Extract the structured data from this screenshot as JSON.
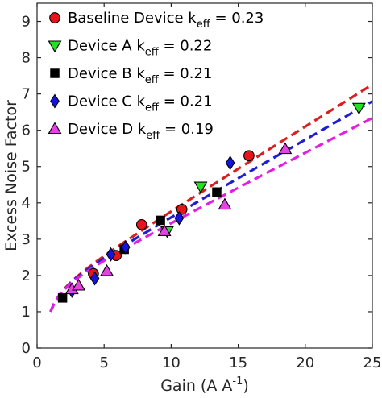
{
  "chart_data": {
    "type": "scatter",
    "xlabel": "Gain (A A",
    "xlabel_sup": "-1",
    "xlabel_close": ")",
    "ylabel": "Excess Noise Factor",
    "xlim": [
      0,
      25
    ],
    "ylim": [
      0,
      9.5
    ],
    "xticks": [
      0,
      5,
      10,
      15,
      20,
      25
    ],
    "yticks": [
      0,
      1,
      2,
      3,
      4,
      5,
      6,
      7,
      8,
      9
    ],
    "grid": false,
    "legend_position": "top-left",
    "series": [
      {
        "name": "Baseline Device k",
        "name_sub": "eff",
        "name_suffix": " = 0.23",
        "marker": "circle",
        "color": "#e8141b",
        "keff": 0.23,
        "fit_color": "#d91f1f",
        "points": [
          [
            4.2,
            2.05
          ],
          [
            5.9,
            2.55
          ],
          [
            7.8,
            3.4
          ],
          [
            10.8,
            3.82
          ],
          [
            15.8,
            5.3
          ]
        ]
      },
      {
        "name": "Device A k",
        "name_sub": "eff",
        "name_suffix": " = 0.22",
        "marker": "triangle-down",
        "color": "#22e022",
        "keff": 0.22,
        "fit_color": null,
        "points": [
          [
            9.7,
            3.22
          ],
          [
            12.2,
            4.45
          ],
          [
            24.0,
            6.62
          ]
        ]
      },
      {
        "name": "Device B k",
        "name_sub": "eff",
        "name_suffix": " = 0.21",
        "marker": "square",
        "color": "#000000",
        "keff": 0.21,
        "fit_color": null,
        "points": [
          [
            1.9,
            1.38
          ],
          [
            6.5,
            2.72
          ],
          [
            9.2,
            3.52
          ],
          [
            13.4,
            4.3
          ]
        ]
      },
      {
        "name": "Device C k",
        "name_sub": "eff",
        "name_suffix": " = 0.21",
        "marker": "diamond",
        "color": "#1414dc",
        "keff": 0.21,
        "fit_color": "#1f1fd1",
        "points": [
          [
            2.6,
            1.58
          ],
          [
            4.3,
            1.92
          ],
          [
            5.5,
            2.58
          ],
          [
            6.6,
            2.78
          ],
          [
            10.6,
            3.58
          ],
          [
            14.4,
            5.1
          ]
        ]
      },
      {
        "name": "Device D k",
        "name_sub": "eff",
        "name_suffix": " = 0.19",
        "marker": "triangle-up",
        "color": "#e542e5",
        "keff": 0.19,
        "fit_color": "#e21ee2",
        "points": [
          [
            2.6,
            1.62
          ],
          [
            3.1,
            1.72
          ],
          [
            5.2,
            2.12
          ],
          [
            9.5,
            3.22
          ],
          [
            14.0,
            3.95
          ],
          [
            18.5,
            5.48
          ]
        ]
      }
    ]
  }
}
